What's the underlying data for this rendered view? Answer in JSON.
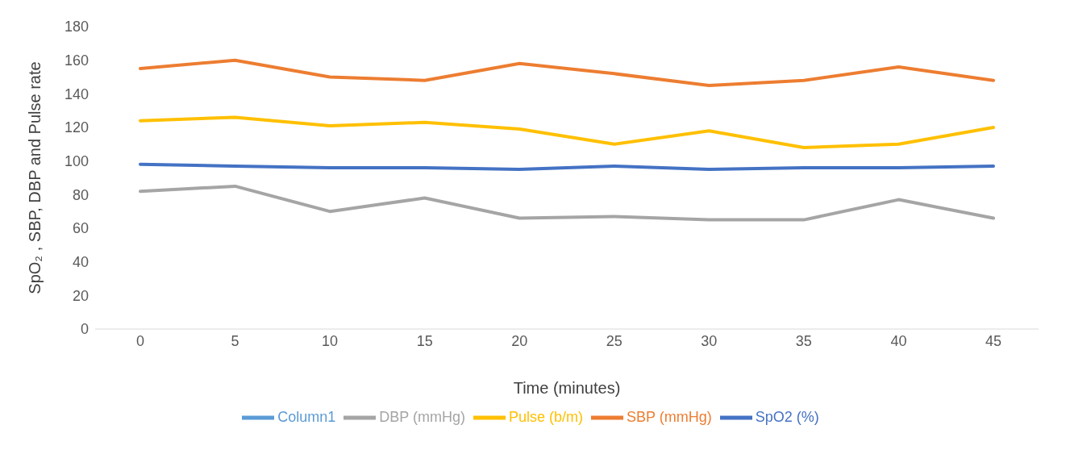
{
  "chart_data": {
    "type": "line",
    "xlabel": "Time (minutes)",
    "ylabel": "SpO₂ , SBP, DBP and Pulse rate",
    "categories": [
      "0",
      "5",
      "10",
      "15",
      "20",
      "25",
      "30",
      "35",
      "40",
      "45"
    ],
    "series": [
      {
        "name": "SpO2 (%)",
        "color": "#4472c4",
        "values": [
          98,
          97,
          96,
          96,
          95,
          97,
          95,
          96,
          96,
          97
        ]
      },
      {
        "name": "SBP (mmHg)",
        "color": "#ed7d31",
        "values": [
          155,
          160,
          150,
          148,
          158,
          152,
          145,
          148,
          156,
          148
        ]
      },
      {
        "name": "DBP (mmHg)",
        "color": "#a5a5a5",
        "values": [
          82,
          85,
          70,
          78,
          66,
          67,
          65,
          65,
          77,
          66
        ]
      },
      {
        "name": "Pulse (b/m)",
        "color": "#ffc000",
        "values": [
          124,
          126,
          121,
          123,
          119,
          110,
          118,
          108,
          110,
          120
        ]
      },
      {
        "name": "Column1",
        "color": "#5b9bd5",
        "values": [
          null,
          null,
          null,
          null,
          null,
          null,
          null,
          null,
          null,
          null
        ]
      }
    ],
    "ylim": [
      0,
      180
    ],
    "yticks": [
      0,
      20,
      40,
      60,
      80,
      100,
      120,
      140,
      160,
      180
    ],
    "legend": "bottom",
    "marker": "none",
    "line_style": "solid"
  }
}
